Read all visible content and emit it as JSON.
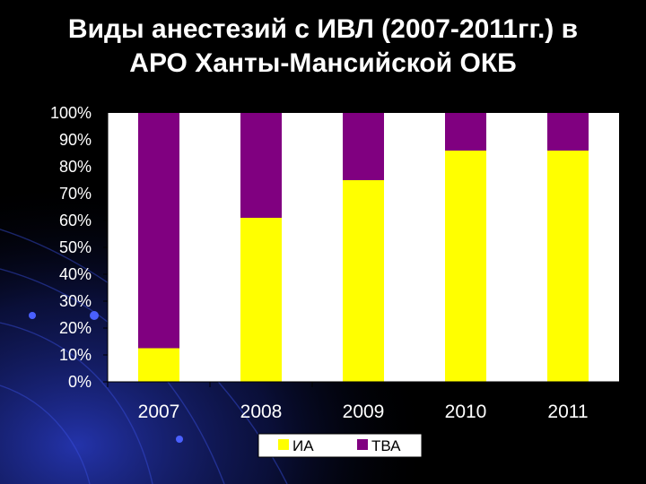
{
  "slide": {
    "title_line1": "Виды анестезий с ИВЛ (2007-2011гг.) в",
    "title_line2": "АРО Ханты-Мансийской ОКБ"
  },
  "colors": {
    "background": "#000000",
    "plot_area": "#ffffff",
    "ia": "#ffff00",
    "tva": "#800080",
    "text": "#ffffff"
  },
  "chart_data": {
    "type": "bar",
    "stacked": "percent",
    "categories": [
      "2007",
      "2008",
      "2009",
      "2010",
      "2011"
    ],
    "series": [
      {
        "name": "ИА",
        "color": "#ffff00",
        "values": [
          12.5,
          61,
          75,
          86,
          86
        ]
      },
      {
        "name": "ТВА",
        "color": "#800080",
        "values": [
          87.5,
          39,
          25,
          14,
          14
        ]
      }
    ],
    "ylim": [
      0,
      100
    ],
    "yticks": [
      "0%",
      "10%",
      "20%",
      "30%",
      "40%",
      "50%",
      "60%",
      "70%",
      "80%",
      "90%",
      "100%"
    ],
    "grid": false,
    "legend_position": "bottom",
    "title": "",
    "xlabel": "",
    "ylabel": ""
  }
}
